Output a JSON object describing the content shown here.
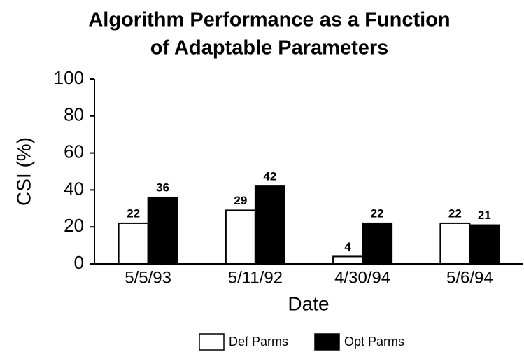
{
  "chart_data": {
    "type": "bar",
    "title": [
      "Algorithm Performance as a Function",
      "of Adaptable Parameters"
    ],
    "x_label": "Date",
    "y_label": "CSI (%)",
    "categories": [
      "5/5/93",
      "5/11/92",
      "4/30/94",
      "5/6/94"
    ],
    "series": [
      {
        "name": "Def Parms",
        "color": "#ffffff",
        "values": [
          22,
          29,
          4,
          22
        ]
      },
      {
        "name": "Opt Parms",
        "color": "#000000",
        "values": [
          36,
          42,
          22,
          21
        ]
      }
    ],
    "ylim": [
      0,
      100
    ],
    "yticks": [
      0,
      20,
      40,
      60,
      80,
      100
    ],
    "legend": "bottom",
    "grid": false
  }
}
